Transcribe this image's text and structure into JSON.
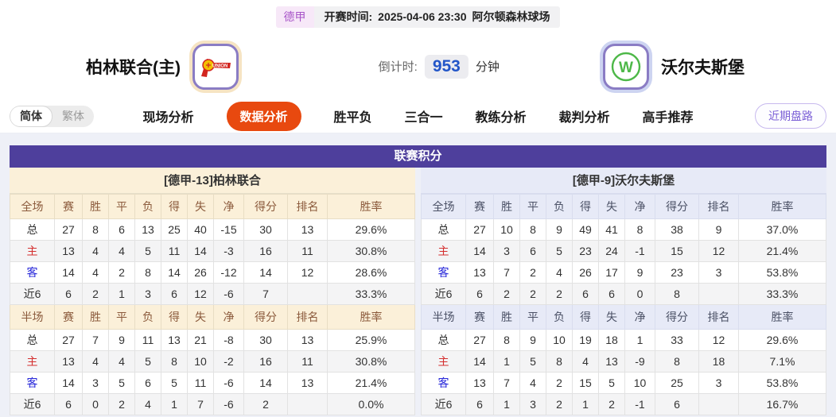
{
  "match_info": {
    "league": "德甲",
    "kickoff_label": "开赛时间:",
    "kickoff_time": "2025-04-06 23:30",
    "venue": "阿尔顿森林球场",
    "home_team": "柏林联合(主)",
    "away_team": "沃尔夫斯堡",
    "countdown_label": "倒计时:",
    "countdown_value": "953",
    "countdown_unit": "分钟"
  },
  "nav": {
    "lang_simplified": "简体",
    "lang_traditional": "繁体",
    "tabs": [
      {
        "label": "现场分析",
        "active": false
      },
      {
        "label": "数据分析",
        "active": true
      },
      {
        "label": "胜平负",
        "active": false
      },
      {
        "label": "三合一",
        "active": false
      },
      {
        "label": "教练分析",
        "active": false
      },
      {
        "label": "裁判分析",
        "active": false
      },
      {
        "label": "高手推荐",
        "active": false
      }
    ],
    "recent_trends": "近期盘路"
  },
  "standings": {
    "title": "联赛积分",
    "columns_full": [
      "全场",
      "赛",
      "胜",
      "平",
      "负",
      "得",
      "失",
      "净",
      "得分",
      "排名",
      "胜率"
    ],
    "columns_half": [
      "半场",
      "赛",
      "胜",
      "平",
      "负",
      "得",
      "失",
      "净",
      "得分",
      "排名",
      "胜率"
    ],
    "home": {
      "team_header": "[德甲-13]柏林联合",
      "full": [
        {
          "label": "总",
          "color": "",
          "values": [
            "27",
            "8",
            "6",
            "13",
            "25",
            "40",
            "-15",
            "30",
            "13",
            "29.6%"
          ]
        },
        {
          "label": "主",
          "color": "red",
          "values": [
            "13",
            "4",
            "4",
            "5",
            "11",
            "14",
            "-3",
            "16",
            "11",
            "30.8%"
          ]
        },
        {
          "label": "客",
          "color": "blue",
          "values": [
            "14",
            "4",
            "2",
            "8",
            "14",
            "26",
            "-12",
            "14",
            "12",
            "28.6%"
          ]
        },
        {
          "label": "近6",
          "color": "",
          "values": [
            "6",
            "2",
            "1",
            "3",
            "6",
            "12",
            "-6",
            "7",
            "",
            "33.3%"
          ]
        }
      ],
      "half": [
        {
          "label": "总",
          "color": "",
          "values": [
            "27",
            "7",
            "9",
            "11",
            "13",
            "21",
            "-8",
            "30",
            "13",
            "25.9%"
          ]
        },
        {
          "label": "主",
          "color": "red",
          "values": [
            "13",
            "4",
            "4",
            "5",
            "8",
            "10",
            "-2",
            "16",
            "11",
            "30.8%"
          ]
        },
        {
          "label": "客",
          "color": "blue",
          "values": [
            "14",
            "3",
            "5",
            "6",
            "5",
            "11",
            "-6",
            "14",
            "13",
            "21.4%"
          ]
        },
        {
          "label": "近6",
          "color": "",
          "values": [
            "6",
            "0",
            "2",
            "4",
            "1",
            "7",
            "-6",
            "2",
            "",
            "0.0%"
          ]
        }
      ]
    },
    "away": {
      "team_header": "[德甲-9]沃尔夫斯堡",
      "full": [
        {
          "label": "总",
          "color": "",
          "values": [
            "27",
            "10",
            "8",
            "9",
            "49",
            "41",
            "8",
            "38",
            "9",
            "37.0%"
          ]
        },
        {
          "label": "主",
          "color": "red",
          "values": [
            "14",
            "3",
            "6",
            "5",
            "23",
            "24",
            "-1",
            "15",
            "12",
            "21.4%"
          ]
        },
        {
          "label": "客",
          "color": "blue",
          "values": [
            "13",
            "7",
            "2",
            "4",
            "26",
            "17",
            "9",
            "23",
            "3",
            "53.8%"
          ]
        },
        {
          "label": "近6",
          "color": "",
          "values": [
            "6",
            "2",
            "2",
            "2",
            "6",
            "6",
            "0",
            "8",
            "",
            "33.3%"
          ]
        }
      ],
      "half": [
        {
          "label": "总",
          "color": "",
          "values": [
            "27",
            "8",
            "9",
            "10",
            "19",
            "18",
            "1",
            "33",
            "12",
            "29.6%"
          ]
        },
        {
          "label": "主",
          "color": "red",
          "values": [
            "14",
            "1",
            "5",
            "8",
            "4",
            "13",
            "-9",
            "8",
            "18",
            "7.1%"
          ]
        },
        {
          "label": "客",
          "color": "blue",
          "values": [
            "13",
            "7",
            "4",
            "2",
            "15",
            "5",
            "10",
            "25",
            "3",
            "53.8%"
          ]
        },
        {
          "label": "近6",
          "color": "",
          "values": [
            "6",
            "1",
            "3",
            "2",
            "1",
            "2",
            "-1",
            "6",
            "",
            "16.7%"
          ]
        }
      ]
    }
  },
  "colors": {
    "primary_purple": "#4e3f9c",
    "active_tab_orange": "#e8490f",
    "home_panel_bg": "#fbf0d9",
    "away_panel_bg": "#e7eaf7",
    "home_label_red": "#d42f2f",
    "away_label_blue": "#2626d9",
    "countdown_blue": "#2356c8",
    "league_badge_purple": "#a855c8"
  }
}
